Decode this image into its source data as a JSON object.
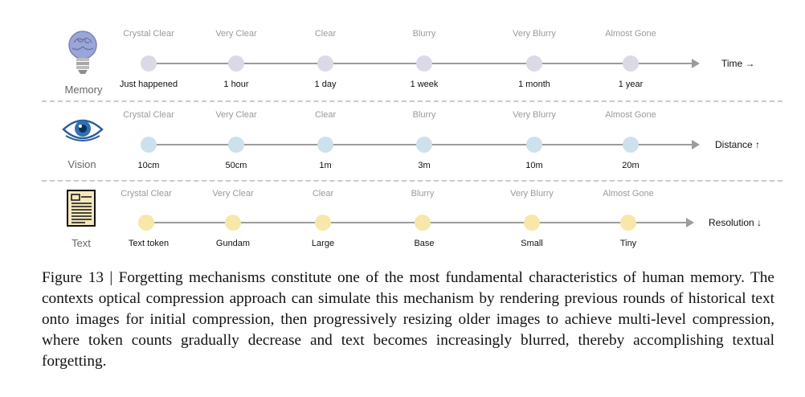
{
  "figure": {
    "rows": [
      {
        "key": "memory",
        "name": "Memory",
        "icon": "brain-lightbulb-icon",
        "axis_label": "Time →",
        "clarity": [
          "Crystal Clear",
          "Very Clear",
          "Clear",
          "Blurry",
          "Very Blurry",
          "Almost Gone"
        ],
        "ticks": [
          "Just happened",
          "1 hour",
          "1 day",
          "1 week",
          "1 month",
          "1 year"
        ],
        "dot_color": "#dcd8e8"
      },
      {
        "key": "vision",
        "name": "Vision",
        "icon": "eye-icon",
        "axis_label": "Distance ↑",
        "clarity": [
          "Crystal Clear",
          "Very Clear",
          "Clear",
          "Blurry",
          "Very Blurry",
          "Almost Gone"
        ],
        "ticks": [
          "10cm",
          "50cm",
          "1m",
          "3m",
          "10m",
          "20m"
        ],
        "dot_color": "#cde1ec"
      },
      {
        "key": "text",
        "name": "Text",
        "icon": "document-icon",
        "axis_label": "Resolution ↓",
        "clarity": [
          "Crystal Clear",
          "Very Clear",
          "Clear",
          "Blurry",
          "Very Blurry",
          "Almost Gone"
        ],
        "ticks": [
          "Text token",
          "Gundam",
          "Large",
          "Base",
          "Small",
          "Tiny"
        ],
        "dot_color": "#f7e7a8"
      }
    ]
  },
  "caption": "Figure 13 | Forgetting mechanisms constitute one of the most fundamental characteristics of human memory. The contexts optical compression approach can simulate this mechanism by rendering previous rounds of historical text onto images for initial compression, then progressively resizing older images to achieve multi-level compression, where token counts gradually decrease and text becomes increasingly blurred, thereby accomplishing textual forgetting."
}
